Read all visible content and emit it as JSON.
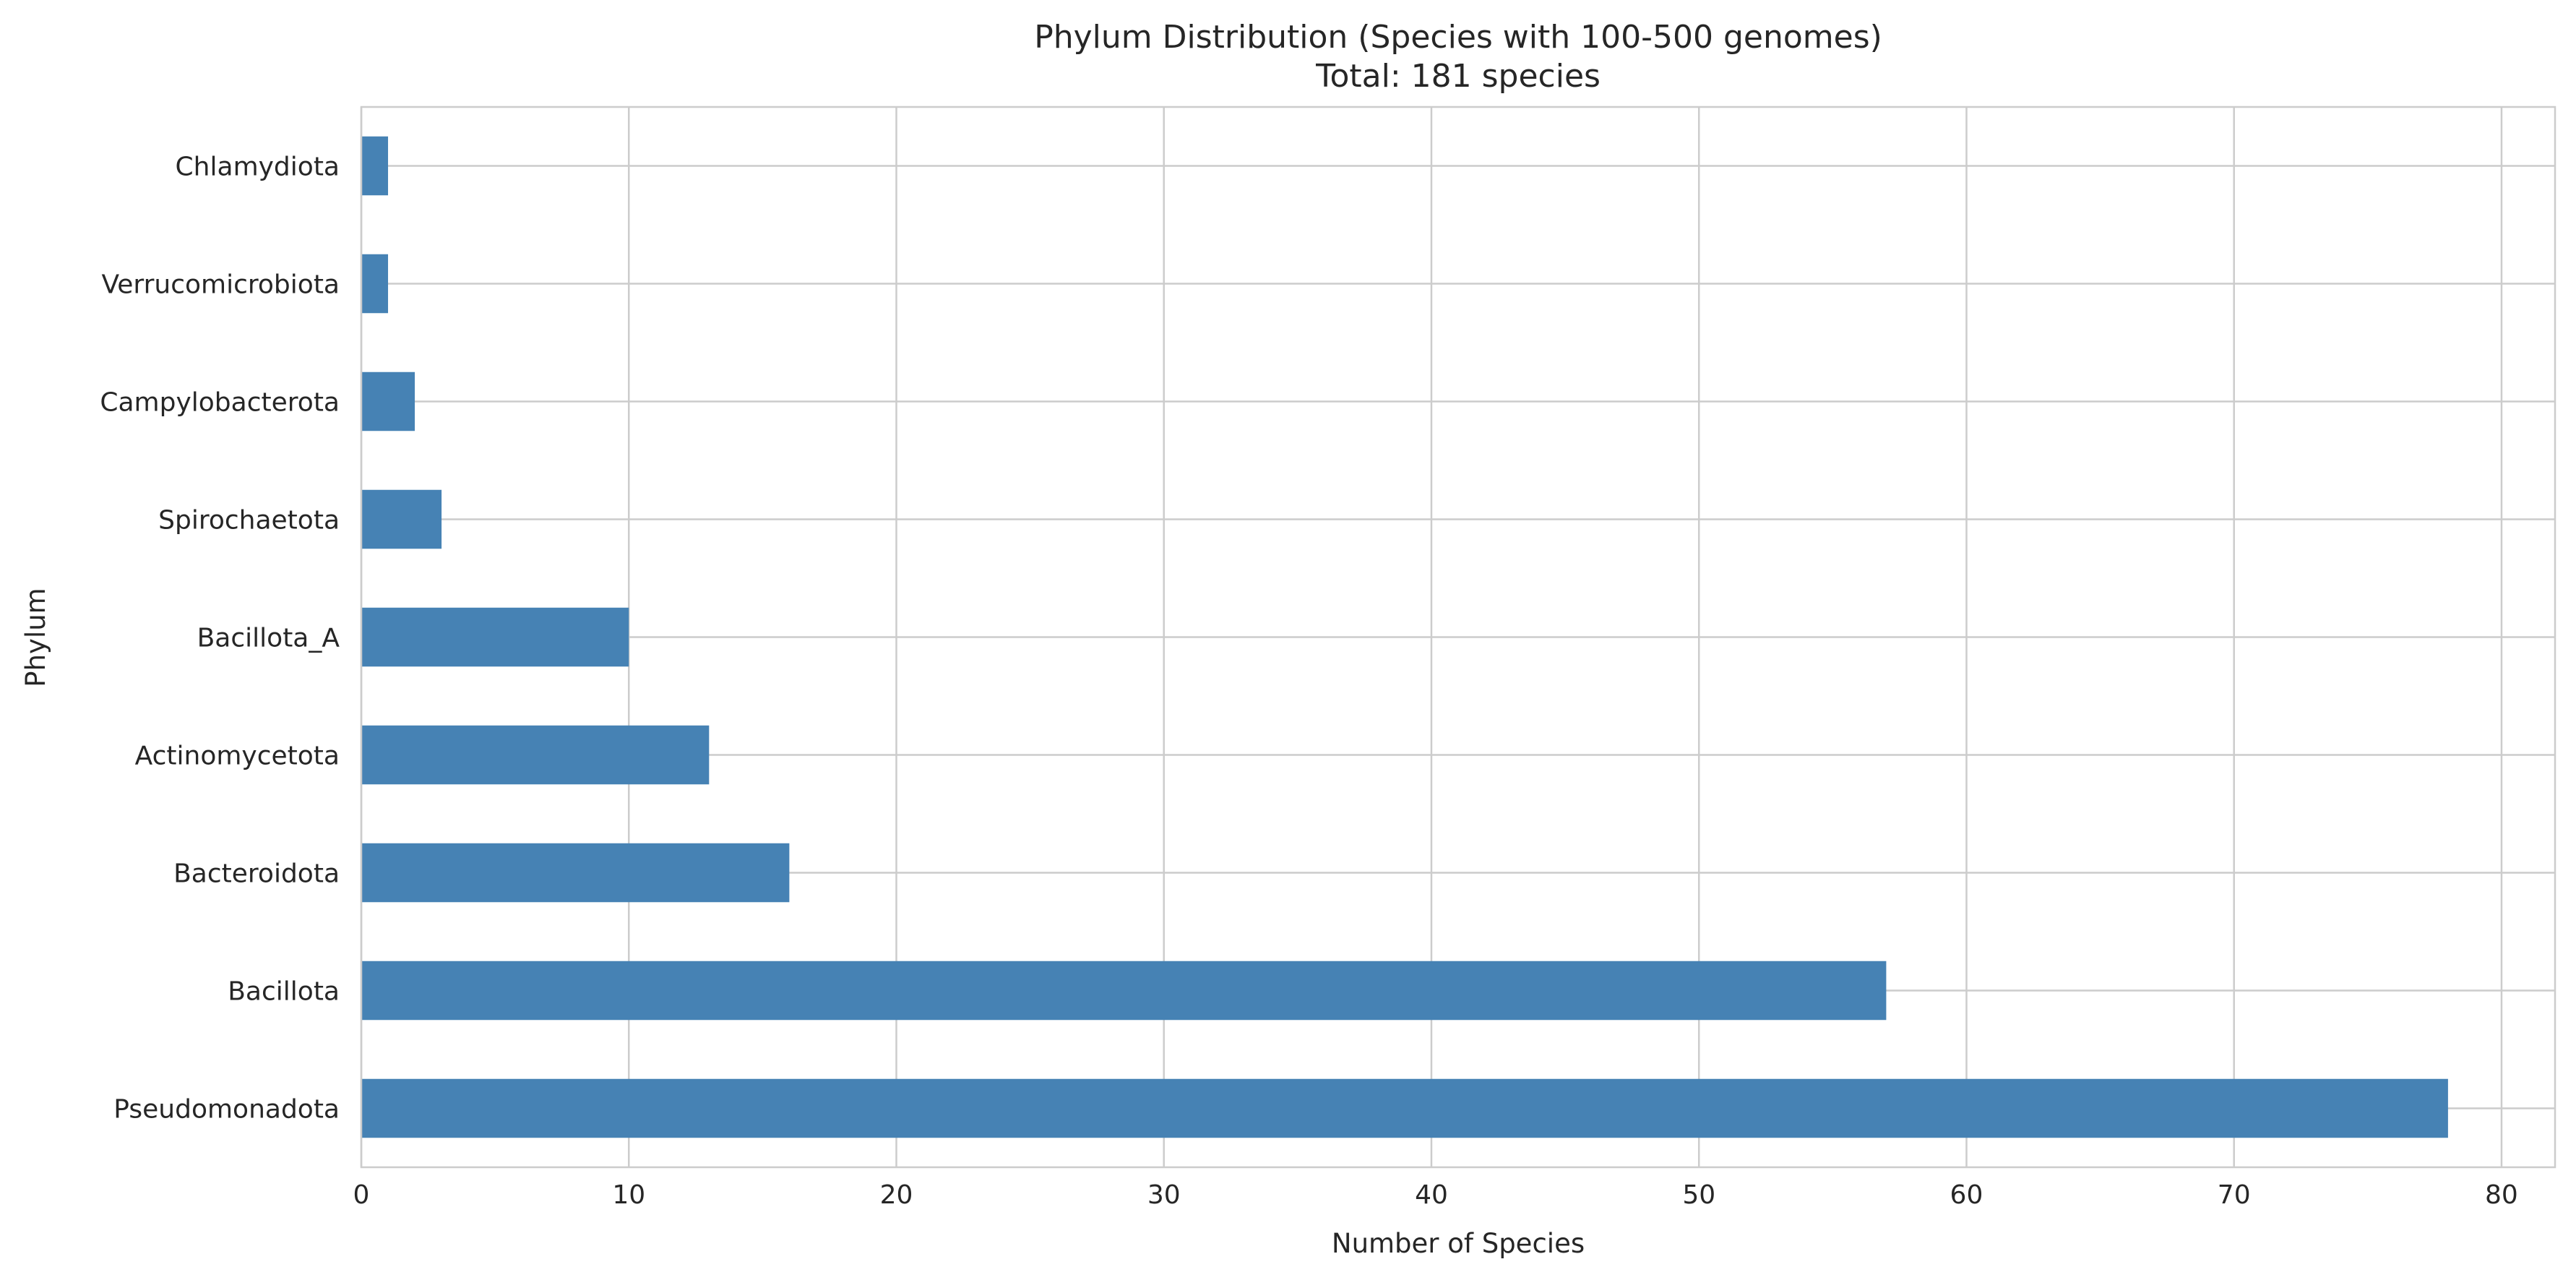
{
  "chart_data": {
    "type": "bar",
    "orientation": "horizontal",
    "title": "Phylum Distribution (Species with 100-500 genomes)",
    "subtitle": "Total: 181 species",
    "xlabel": "Number of Species",
    "ylabel": "Phylum",
    "categories": [
      "Pseudomonadota",
      "Bacillota",
      "Bacteroidota",
      "Actinomycetota",
      "Bacillota_A",
      "Spirochaetota",
      "Campylobacterota",
      "Verrucomicrobiota",
      "Chlamydiota"
    ],
    "values": [
      78,
      57,
      16,
      13,
      10,
      3,
      2,
      1,
      1
    ],
    "xlim": [
      0,
      82
    ],
    "xticks": [
      "0",
      "10",
      "20",
      "30",
      "40",
      "50",
      "60",
      "70",
      "80"
    ],
    "grid": true,
    "bar_color": "#4682b4",
    "grid_color": "#cccccc"
  }
}
